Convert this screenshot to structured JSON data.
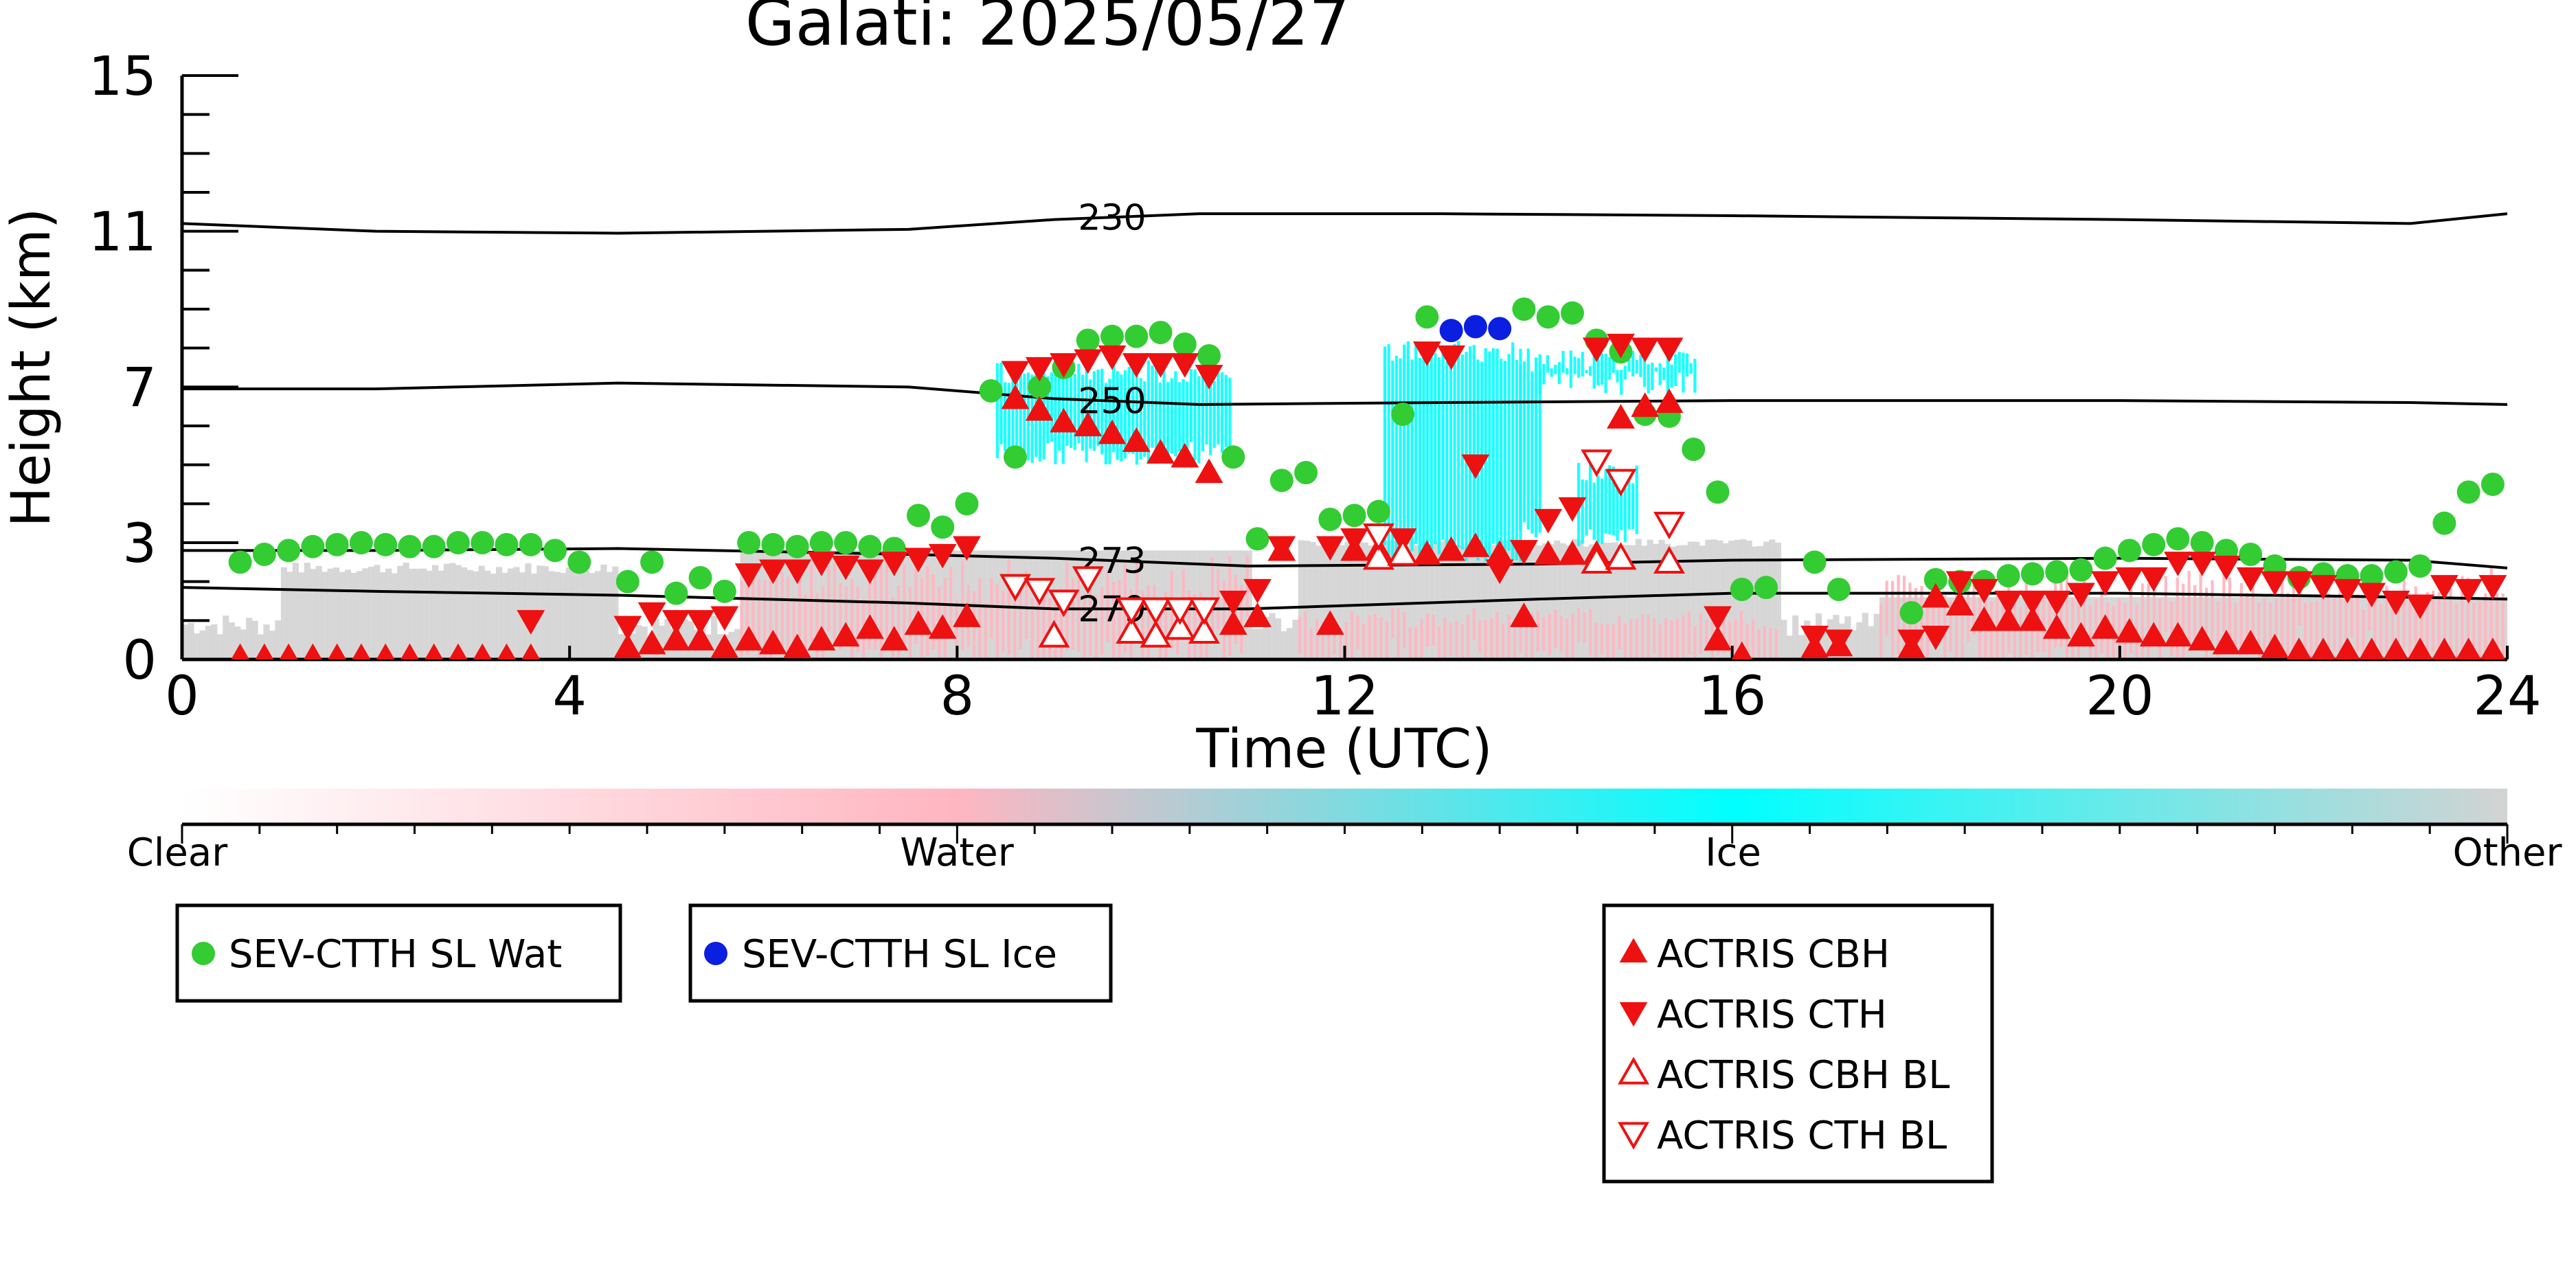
{
  "colors": {
    "water_sl": "#33cc33",
    "ice_sl": "#0b1fe0",
    "actris": "#ee1111",
    "cb_clear": "#ffffff",
    "cb_water": "#ffb6c1",
    "cb_ice": "#00ffff",
    "cb_other": "#d3d3d3"
  },
  "chart_data": {
    "type": "scatter",
    "title": "Galati: 2025/05/27",
    "xlabel": "Time (UTC)",
    "ylabel": "Height (km)",
    "xlim": [
      0,
      24
    ],
    "ylim": [
      0,
      15
    ],
    "x_ticks": [
      "0",
      "4",
      "8",
      "12",
      "16",
      "20",
      "24"
    ],
    "y_ticks": [
      "0",
      "3",
      "7",
      "11",
      "15"
    ],
    "colorbar": {
      "labels": [
        "Clear",
        "Water",
        "Ice",
        "Other"
      ]
    },
    "isotherms": [
      {
        "label": "230",
        "points": [
          [
            0,
            11.2
          ],
          [
            2,
            11.0
          ],
          [
            4.5,
            10.95
          ],
          [
            7.5,
            11.05
          ],
          [
            9,
            11.3
          ],
          [
            10.5,
            11.45
          ],
          [
            13,
            11.45
          ],
          [
            16,
            11.4
          ],
          [
            20,
            11.3
          ],
          [
            23,
            11.2
          ],
          [
            24,
            11.45
          ]
        ]
      },
      {
        "label": "250",
        "points": [
          [
            0,
            6.95
          ],
          [
            2,
            6.95
          ],
          [
            4.5,
            7.1
          ],
          [
            7.5,
            7.0
          ],
          [
            9,
            6.7
          ],
          [
            10.5,
            6.55
          ],
          [
            13,
            6.6
          ],
          [
            16,
            6.65
          ],
          [
            20,
            6.65
          ],
          [
            23,
            6.6
          ],
          [
            24,
            6.55
          ]
        ]
      },
      {
        "label": "273",
        "points": [
          [
            0,
            2.8
          ],
          [
            2,
            2.8
          ],
          [
            4.5,
            2.85
          ],
          [
            7.5,
            2.7
          ],
          [
            9,
            2.6
          ],
          [
            11,
            2.4
          ],
          [
            14,
            2.45
          ],
          [
            16,
            2.55
          ],
          [
            20,
            2.6
          ],
          [
            23,
            2.55
          ],
          [
            24,
            2.35
          ]
        ]
      },
      {
        "label": "279",
        "points": [
          [
            0,
            1.85
          ],
          [
            2,
            1.75
          ],
          [
            4.5,
            1.65
          ],
          [
            7.5,
            1.45
          ],
          [
            9,
            1.3
          ],
          [
            11,
            1.3
          ],
          [
            14,
            1.55
          ],
          [
            16,
            1.7
          ],
          [
            20,
            1.7
          ],
          [
            23,
            1.6
          ],
          [
            24,
            1.55
          ]
        ]
      }
    ],
    "series": [
      {
        "name": "SEV-CTTH SL Wat",
        "marker": "circle",
        "x": [
          0.6,
          0.85,
          1.1,
          1.35,
          1.6,
          1.85,
          2.1,
          2.35,
          2.6,
          2.85,
          3.1,
          3.35,
          3.6,
          3.85,
          4.1,
          4.6,
          4.85,
          5.1,
          5.35,
          5.6,
          5.85,
          6.1,
          6.35,
          6.6,
          6.85,
          7.1,
          7.35,
          7.6,
          7.85,
          8.1,
          8.35,
          8.6,
          8.85,
          9.1,
          9.35,
          9.6,
          9.85,
          10.1,
          10.35,
          10.6,
          10.85,
          11.1,
          11.35,
          11.6,
          11.85,
          12.1,
          12.35,
          12.6,
          12.85,
          13.85,
          14.1,
          14.35,
          14.6,
          14.85,
          15.1,
          15.35,
          15.6,
          15.85,
          16.1,
          16.35,
          16.85,
          17.1,
          17.85,
          18.1,
          18.35,
          18.6,
          18.85,
          19.1,
          19.35,
          19.6,
          19.85,
          20.1,
          20.35,
          20.6,
          20.85,
          21.1,
          21.35,
          21.6,
          21.85,
          22.1,
          22.35,
          22.6,
          22.85,
          23.1,
          23.35,
          23.6,
          23.85
        ],
        "y": [
          2.5,
          2.7,
          2.8,
          2.9,
          2.95,
          3.0,
          2.95,
          2.9,
          2.9,
          3.0,
          3.0,
          2.95,
          2.95,
          2.8,
          2.5,
          2.0,
          2.5,
          1.7,
          2.1,
          1.75,
          3.0,
          2.95,
          2.9,
          3.0,
          3.0,
          2.9,
          2.85,
          3.7,
          3.4,
          4.0,
          6.9,
          5.2,
          7.0,
          7.5,
          8.2,
          8.3,
          8.3,
          8.4,
          8.1,
          7.8,
          5.2,
          3.1,
          4.6,
          4.8,
          3.6,
          3.7,
          3.8,
          6.3,
          8.8,
          9.0,
          8.8,
          8.9,
          8.2,
          7.9,
          6.3,
          6.25,
          5.4,
          4.3,
          1.8,
          1.85,
          2.5,
          1.8,
          1.2,
          2.05,
          2.0,
          2.0,
          2.15,
          2.2,
          2.25,
          2.3,
          2.6,
          2.8,
          2.95,
          3.1,
          3.0,
          2.8,
          2.7,
          2.4,
          2.1,
          2.2,
          2.15,
          2.15,
          2.25,
          2.4,
          3.5,
          4.3,
          4.5
        ]
      },
      {
        "name": "SEV-CTTH SL Ice",
        "marker": "circle",
        "x": [
          13.1,
          13.35,
          13.6
        ],
        "y": [
          8.45,
          8.55,
          8.5
        ]
      },
      {
        "name": "ACTRIS CBH",
        "marker": "triangle-up",
        "x": [
          0.6,
          0.85,
          1.1,
          1.35,
          1.6,
          1.85,
          2.1,
          2.35,
          2.6,
          2.85,
          3.1,
          3.35,
          3.6,
          4.6,
          4.85,
          5.1,
          5.35,
          5.6,
          5.85,
          6.1,
          6.35,
          6.6,
          6.85,
          7.1,
          7.35,
          7.6,
          7.85,
          8.1,
          8.6,
          8.85,
          9.1,
          9.35,
          9.6,
          9.85,
          10.1,
          10.35,
          10.6,
          10.85,
          11.1,
          11.35,
          11.85,
          12.1,
          12.35,
          12.6,
          12.85,
          13.1,
          13.35,
          13.6,
          13.85,
          14.1,
          14.35,
          14.6,
          14.85,
          15.1,
          15.35,
          15.85,
          16.1,
          16.85,
          17.1,
          17.85,
          18.1,
          18.35,
          18.6,
          18.85,
          19.1,
          19.35,
          19.6,
          19.85,
          20.1,
          20.35,
          20.6,
          20.85,
          21.1,
          21.35,
          21.6,
          21.85,
          22.1,
          22.35,
          22.6,
          22.85,
          23.1,
          23.35,
          23.6,
          23.85
        ],
        "y": [
          0.05,
          0.05,
          0.05,
          0.05,
          0.05,
          0.05,
          0.05,
          0.05,
          0.05,
          0.05,
          0.05,
          0.05,
          0.05,
          0.3,
          0.4,
          0.5,
          0.5,
          0.3,
          0.5,
          0.4,
          0.3,
          0.5,
          0.6,
          0.8,
          0.5,
          0.9,
          0.8,
          1.1,
          6.7,
          6.4,
          6.1,
          6.0,
          5.8,
          5.6,
          5.3,
          5.2,
          4.8,
          0.9,
          1.1,
          2.8,
          0.9,
          2.8,
          2.8,
          2.7,
          2.7,
          2.8,
          2.9,
          2.7,
          1.1,
          2.7,
          2.7,
          2.7,
          6.2,
          6.5,
          6.6,
          0.5,
          0.1,
          0.3,
          0.35,
          0.3,
          1.6,
          1.4,
          1.0,
          1.0,
          1.0,
          0.8,
          0.6,
          0.8,
          0.7,
          0.6,
          0.6,
          0.5,
          0.4,
          0.4,
          0.3,
          0.2,
          0.2,
          0.2,
          0.2,
          0.2,
          0.2,
          0.2,
          0.2,
          0.2
        ]
      },
      {
        "name": "ACTRIS CTH",
        "marker": "triangle-down",
        "x": [
          3.6,
          4.6,
          4.85,
          5.1,
          5.35,
          5.6,
          5.85,
          6.1,
          6.35,
          6.6,
          6.85,
          7.1,
          7.35,
          7.6,
          7.85,
          8.1,
          8.6,
          8.85,
          9.1,
          9.35,
          9.6,
          9.85,
          10.1,
          10.35,
          10.6,
          10.85,
          11.1,
          11.35,
          11.85,
          12.1,
          12.35,
          12.6,
          12.85,
          13.1,
          13.35,
          13.6,
          13.85,
          14.1,
          14.35,
          14.6,
          14.85,
          15.1,
          15.35,
          15.85,
          16.85,
          17.1,
          17.85,
          18.1,
          18.35,
          18.6,
          18.85,
          19.1,
          19.35,
          19.6,
          19.85,
          20.1,
          20.35,
          20.6,
          20.85,
          21.1,
          21.35,
          21.6,
          21.85,
          22.1,
          22.35,
          22.6,
          22.85,
          23.1,
          23.35,
          23.6,
          23.85
        ],
        "y": [
          1.0,
          0.85,
          1.2,
          1.0,
          1.0,
          1.1,
          2.2,
          2.3,
          2.3,
          2.5,
          2.4,
          2.3,
          2.5,
          2.6,
          2.7,
          2.9,
          7.4,
          7.5,
          7.6,
          7.7,
          7.8,
          7.6,
          7.6,
          7.6,
          7.3,
          1.5,
          1.8,
          2.9,
          2.9,
          3.1,
          3.2,
          3.1,
          7.9,
          7.8,
          5.0,
          2.3,
          2.8,
          3.6,
          3.9,
          8.0,
          8.1,
          8.0,
          8.0,
          1.1,
          0.6,
          0.5,
          0.5,
          0.6,
          2.0,
          1.8,
          1.5,
          1.5,
          1.5,
          1.7,
          2.0,
          2.1,
          2.1,
          2.5,
          2.5,
          2.4,
          2.1,
          2.0,
          2.0,
          1.9,
          1.8,
          1.7,
          1.5,
          1.4,
          1.9,
          1.8,
          1.9
        ]
      },
      {
        "name": "ACTRIS CBH BL",
        "marker": "triangle-up-open",
        "x": [
          9.0,
          9.8,
          10.05,
          10.3,
          10.55,
          12.35,
          12.6,
          14.6,
          14.85,
          15.35
        ],
        "y": [
          0.6,
          0.7,
          0.6,
          0.8,
          0.7,
          2.6,
          2.7,
          2.5,
          2.6,
          2.5
        ]
      },
      {
        "name": "ACTRIS CTH BL",
        "marker": "triangle-down-open",
        "x": [
          8.6,
          8.85,
          9.1,
          9.35,
          9.8,
          10.05,
          10.3,
          10.55,
          12.35,
          14.6,
          14.85,
          15.35
        ],
        "y": [
          1.9,
          1.8,
          1.5,
          2.1,
          1.3,
          1.3,
          1.3,
          1.3,
          3.2,
          5.1,
          4.6,
          3.5
        ]
      }
    ],
    "legends": [
      {
        "placement": "below-left",
        "entries": [
          "SEV-CTTH SL Wat"
        ]
      },
      {
        "placement": "below-center-left",
        "entries": [
          "SEV-CTTH SL Ice"
        ]
      },
      {
        "placement": "below-right",
        "entries": [
          "ACTRIS CBH",
          "ACTRIS CTH",
          "ACTRIS CBH BL",
          "ACTRIS CTH BL"
        ]
      }
    ]
  }
}
